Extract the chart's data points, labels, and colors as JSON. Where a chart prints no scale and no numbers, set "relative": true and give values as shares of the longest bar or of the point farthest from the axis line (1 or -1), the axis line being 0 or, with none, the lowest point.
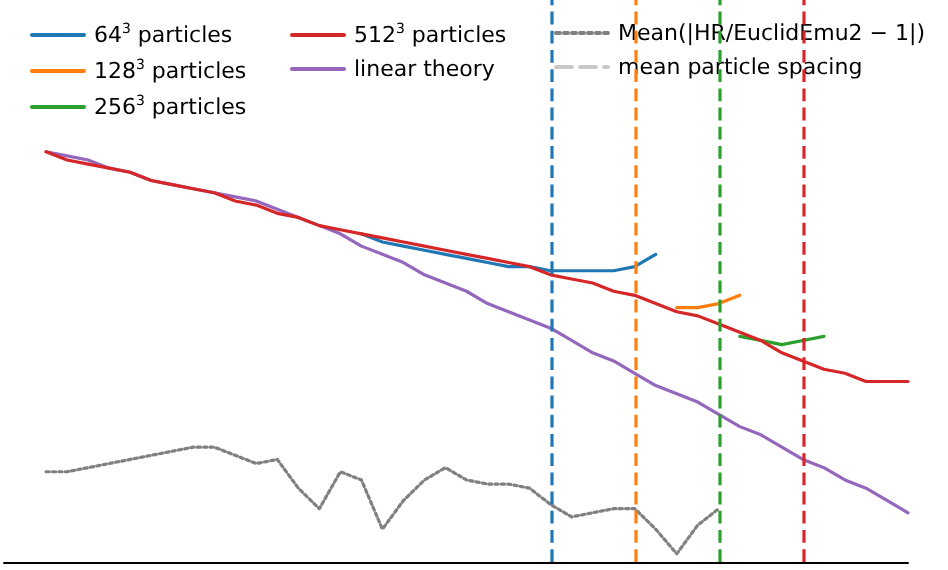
{
  "chart_data": {
    "type": "line",
    "relative": true,
    "tick_labels": false,
    "grid": false,
    "legend": "top",
    "marker": "none",
    "categories": [
      null,
      null,
      null,
      null,
      null,
      null,
      null,
      null,
      null,
      null,
      null,
      null,
      null,
      null,
      null,
      null,
      null,
      null,
      null,
      null,
      null,
      null,
      null,
      null,
      null,
      null,
      null,
      null,
      null,
      null,
      null,
      null,
      null,
      null,
      null,
      null,
      null,
      null,
      null,
      null,
      null,
      null,
      null,
      null
    ],
    "series": [
      {
        "name": "64$^{3}$ particles",
        "color": "#1f77b4",
        "values": [
          null,
          null,
          null,
          null,
          null,
          null,
          null,
          null,
          null,
          null,
          null,
          null,
          null,
          null,
          null,
          null,
          null,
          0.8,
          0.78,
          0.77,
          0.76,
          0.75,
          0.74,
          0.73,
          0.72,
          0.72,
          0.71,
          0.71,
          0.71,
          0.71,
          0.72,
          0.75,
          null,
          null,
          null,
          null,
          null,
          null,
          null,
          null,
          null,
          null,
          null,
          null
        ]
      },
      {
        "name": "128$^{3}$ particles",
        "color": "#ff7f0e",
        "values": [
          null,
          null,
          null,
          null,
          null,
          null,
          null,
          null,
          null,
          null,
          null,
          null,
          null,
          null,
          null,
          null,
          null,
          null,
          null,
          null,
          null,
          null,
          null,
          null,
          null,
          null,
          null,
          null,
          null,
          null,
          null,
          null,
          0.62,
          0.62,
          0.63,
          0.65,
          null,
          null,
          null,
          null,
          null,
          null,
          null,
          null
        ]
      },
      {
        "name": "256$^{3}$ particles",
        "color": "#2ca02c",
        "values": [
          null,
          null,
          null,
          null,
          null,
          null,
          null,
          null,
          null,
          null,
          null,
          null,
          null,
          null,
          null,
          null,
          null,
          null,
          null,
          null,
          null,
          null,
          null,
          null,
          null,
          null,
          null,
          null,
          null,
          null,
          null,
          null,
          null,
          null,
          null,
          0.55,
          0.54,
          0.53,
          0.54,
          0.55,
          null,
          null,
          null,
          null
        ]
      },
      {
        "name": "512$^{3}$ particles",
        "color": "#d62728",
        "values": [
          null,
          null,
          1,
          0.98,
          0.97,
          0.96,
          0.95,
          0.93,
          0.92,
          0.91,
          0.9,
          0.88,
          0.87,
          0.85,
          0.84,
          0.82,
          0.81,
          0.8,
          0.79,
          0.78,
          0.77,
          0.76,
          0.75,
          0.74,
          0.73,
          0.72,
          0.7,
          0.69,
          0.68,
          0.66,
          0.65,
          0.63,
          0.61,
          0.6,
          0.58,
          0.56,
          0.54,
          0.51,
          0.49,
          0.47,
          0.46,
          0.44,
          0.44,
          0.44
        ]
      },
      {
        "name": "linear theory",
        "color": "#9467bd",
        "values": [
          null,
          null,
          1,
          0.99,
          0.98,
          0.96,
          0.95,
          0.93,
          0.92,
          0.91,
          0.9,
          0.89,
          0.88,
          0.86,
          0.84,
          0.82,
          0.8,
          0.77,
          0.75,
          0.73,
          0.7,
          0.68,
          0.66,
          0.63,
          0.61,
          0.59,
          0.57,
          0.54,
          0.51,
          0.49,
          0.46,
          0.43,
          0.41,
          0.39,
          0.36,
          0.33,
          0.31,
          0.28,
          0.25,
          0.23,
          0.2,
          0.18,
          0.15,
          0.12
        ]
      },
      {
        "name": "Mean(|HR/EuclidEmu2 − 1|)",
        "color": "#808080",
        "line_style": "dotted",
        "values": [
          null,
          null,
          0.22,
          0.22,
          0.23,
          0.24,
          0.25,
          0.26,
          0.27,
          0.28,
          0.28,
          0.26,
          0.24,
          0.25,
          0.18,
          0.13,
          0.22,
          0.2,
          0.08,
          0.15,
          0.2,
          0.23,
          0.2,
          0.19,
          0.19,
          0.18,
          0.14,
          0.11,
          0.12,
          0.13,
          0.13,
          0.08,
          0.02,
          0.09,
          0.13,
          null,
          null,
          null,
          null,
          null,
          null,
          null,
          null,
          null
        ]
      },
      {
        "name": "mean particle spacing",
        "color": "#c8c8c8",
        "line_style": "dashed",
        "values": [
          null,
          null,
          null,
          null,
          null,
          null,
          null,
          null,
          null,
          null,
          null,
          null,
          null,
          null,
          null,
          null,
          null,
          null,
          null,
          null,
          null,
          null,
          null,
          null,
          null,
          null,
          null,
          null,
          null,
          null,
          null,
          null,
          null,
          null,
          null,
          null,
          null,
          null,
          null,
          null,
          null,
          null,
          null,
          null
        ]
      }
    ]
  }
}
